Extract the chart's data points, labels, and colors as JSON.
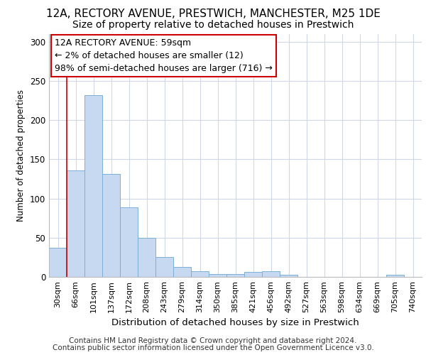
{
  "title1": "12A, RECTORY AVENUE, PRESTWICH, MANCHESTER, M25 1DE",
  "title2": "Size of property relative to detached houses in Prestwich",
  "xlabel": "Distribution of detached houses by size in Prestwich",
  "ylabel": "Number of detached properties",
  "footnote1": "Contains HM Land Registry data © Crown copyright and database right 2024.",
  "footnote2": "Contains public sector information licensed under the Open Government Licence v3.0.",
  "bar_labels": [
    "30sqm",
    "66sqm",
    "101sqm",
    "137sqm",
    "172sqm",
    "208sqm",
    "243sqm",
    "279sqm",
    "314sqm",
    "350sqm",
    "385sqm",
    "421sqm",
    "456sqm",
    "492sqm",
    "527sqm",
    "563sqm",
    "598sqm",
    "634sqm",
    "669sqm",
    "705sqm",
    "740sqm"
  ],
  "bar_values": [
    37,
    136,
    232,
    131,
    89,
    50,
    25,
    13,
    7,
    4,
    4,
    6,
    7,
    3,
    0,
    0,
    0,
    0,
    0,
    3,
    0
  ],
  "bar_color": "#c6d9f0",
  "bar_edge_color": "#7ab0d4",
  "annotation_text": "12A RECTORY AVENUE: 59sqm\n← 2% of detached houses are smaller (12)\n98% of semi-detached houses are larger (716) →",
  "annotation_box_color": "#ffffff",
  "annotation_box_edge_color": "#cc0000",
  "vline_color": "#cc0000",
  "vline_x_index": 1,
  "ylim": [
    0,
    310
  ],
  "yticks": [
    0,
    50,
    100,
    150,
    200,
    250,
    300
  ],
  "grid_color": "#d0d8e8",
  "bg_color": "#ffffff",
  "title1_fontsize": 11,
  "title2_fontsize": 10,
  "xlabel_fontsize": 9.5,
  "ylabel_fontsize": 8.5,
  "annotation_fontsize": 9,
  "tick_fontsize": 8,
  "footnote_fontsize": 7.5
}
